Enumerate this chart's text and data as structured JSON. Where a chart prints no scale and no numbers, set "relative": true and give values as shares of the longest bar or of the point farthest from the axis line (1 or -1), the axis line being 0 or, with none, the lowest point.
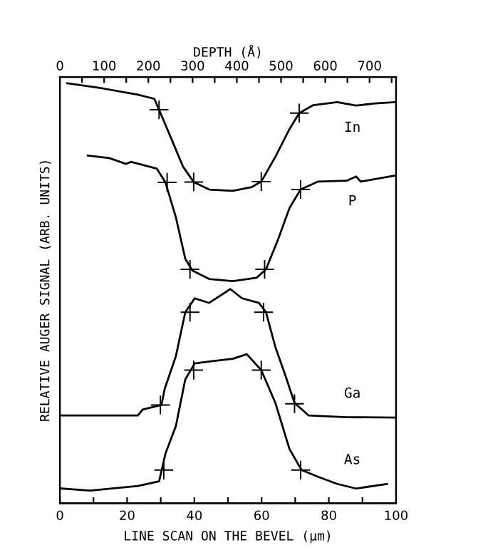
{
  "chart_data": {
    "type": "line",
    "relative": true,
    "xlabel": "LINE SCAN ON THE BEVEL (μm)",
    "ylabel": "RELATIVE AUGER SIGNAL (ARB. UNITS)",
    "x2label": "DEPTH (Å)",
    "xlim": [
      0,
      100
    ],
    "xticks": [
      0,
      {
        "value": 10,
        "label": null
      },
      20,
      {
        "value": 30,
        "label": null
      },
      40,
      {
        "value": 50,
        "label": null
      },
      60,
      {
        "value": 70,
        "label": null
      },
      80,
      {
        "value": 90,
        "label": null
      },
      100
    ],
    "x2lim": [
      0,
      760
    ],
    "x2ticks": [
      0,
      {
        "value": 50,
        "label": null
      },
      100,
      {
        "value": 150,
        "label": null
      },
      200,
      {
        "value": 250,
        "label": null
      },
      300,
      {
        "value": 350,
        "label": null
      },
      400,
      {
        "value": 450,
        "label": null
      },
      500,
      {
        "value": 550,
        "label": null
      },
      600,
      {
        "value": 650,
        "label": null
      },
      700,
      {
        "value": 750,
        "label": null
      }
    ],
    "grid": false,
    "legend": false,
    "line_style": "solid",
    "series": [
      {
        "name": "In",
        "color": "#000000",
        "x": [
          2.2,
          12.6,
          23.2,
          28.1,
          29.5,
          33.1,
          36.6,
          39.8,
          44.4,
          51.4,
          57.1,
          59.9,
          64.1,
          68.3,
          71.2,
          75.4,
          82.5,
          88.1,
          93.8,
          99.5
        ],
        "values": [
          1.0,
          0.988,
          0.973,
          0.963,
          0.937,
          0.869,
          0.802,
          0.765,
          0.747,
          0.744,
          0.753,
          0.766,
          0.825,
          0.891,
          0.929,
          0.948,
          0.955,
          0.947,
          0.952,
          0.955
        ]
      },
      {
        "name": "P",
        "color": "#000000",
        "x": [
          8.3,
          14.7,
          19.7,
          21.1,
          28.8,
          31.4,
          34.5,
          37.3,
          39.4,
          44.4,
          51.4,
          58.5,
          61.3,
          64.8,
          68.3,
          71.6,
          76.8,
          85.3,
          88.1,
          89.5,
          99.5
        ],
        "values": [
          0.828,
          0.822,
          0.808,
          0.813,
          0.797,
          0.764,
          0.681,
          0.582,
          0.554,
          0.534,
          0.529,
          0.537,
          0.557,
          0.626,
          0.703,
          0.747,
          0.766,
          0.768,
          0.778,
          0.766,
          0.78
        ]
      },
      {
        "name": "Ga",
        "color": "#000000",
        "x": [
          0.4,
          23.2,
          24.6,
          30.2,
          31.2,
          34.5,
          37.3,
          40.1,
          44.4,
          50.7,
          54.2,
          59.2,
          61.3,
          64.1,
          67.0,
          69.8,
          74.0,
          85.3,
          99.5
        ],
        "values": [
          0.209,
          0.209,
          0.223,
          0.234,
          0.273,
          0.35,
          0.455,
          0.488,
          0.477,
          0.51,
          0.488,
          0.477,
          0.455,
          0.372,
          0.306,
          0.239,
          0.209,
          0.205,
          0.204
        ]
      },
      {
        "name": "As",
        "color": "#000000",
        "x": [
          0.4,
          9.0,
          23.2,
          29.5,
          31.4,
          34.5,
          37.3,
          40.1,
          45.8,
          51.4,
          55.6,
          59.9,
          64.1,
          68.3,
          71.9,
          76.8,
          82.5,
          88.1,
          97.3
        ],
        "values": [
          0.035,
          0.03,
          0.041,
          0.052,
          0.118,
          0.184,
          0.295,
          0.333,
          0.339,
          0.344,
          0.355,
          0.317,
          0.239,
          0.129,
          0.079,
          0.063,
          0.046,
          0.035,
          0.046
        ]
      },
      {
        "type": "scatter",
        "marker": "cross",
        "color": "#000000",
        "x": [
          29.5,
          39.8,
          59.9,
          71.2,
          31.9,
          38.7,
          60.9,
          71.6,
          29.9,
          38.7,
          60.6,
          69.8,
          30.9,
          39.8,
          59.9,
          71.6
        ],
        "values": [
          0.937,
          0.765,
          0.766,
          0.929,
          0.764,
          0.557,
          0.557,
          0.747,
          0.234,
          0.455,
          0.455,
          0.237,
          0.079,
          0.317,
          0.317,
          0.079
        ]
      }
    ]
  }
}
